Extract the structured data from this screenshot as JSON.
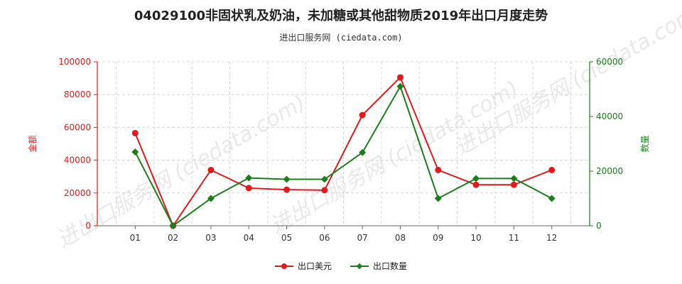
{
  "title": "04029100非固状乳及奶油，未加糖或其他甜物质2019年出口月度走势",
  "subtitle": "进出口服务网 (ciedata.com)",
  "watermark": "进出口服务网 (ciedata.com)",
  "colors": {
    "export_value": "#e31a1c",
    "export_qty": "#1a7f1a",
    "grid": "#d8d8d8"
  },
  "chart_data": {
    "type": "line",
    "categories": [
      "01",
      "02",
      "03",
      "04",
      "05",
      "06",
      "07",
      "08",
      "09",
      "10",
      "11",
      "12"
    ],
    "ylabel_left": "金额",
    "ylabel_right": "数量",
    "ylim_left": [
      0,
      100000
    ],
    "ylim_right": [
      0,
      60000
    ],
    "yticks_left": [
      "0",
      "20000",
      "40000",
      "60000",
      "80000",
      "100000"
    ],
    "yticks_right": [
      "0",
      "20000",
      "40000",
      "60000"
    ],
    "grid": true,
    "legend": "bottom",
    "series": [
      {
        "name": "出口美元",
        "axis": "left",
        "color": "#e31a1c",
        "marker": "circle",
        "values": [
          56500,
          0,
          34000,
          23000,
          22000,
          21700,
          67500,
          90500,
          34000,
          25000,
          25000,
          34000
        ]
      },
      {
        "name": "出口数量",
        "axis": "right",
        "color": "#1a7f1a",
        "marker": "diamond",
        "values": [
          27000,
          0,
          10000,
          17500,
          17000,
          17000,
          26800,
          51000,
          10000,
          17300,
          17300,
          10000
        ]
      }
    ]
  }
}
